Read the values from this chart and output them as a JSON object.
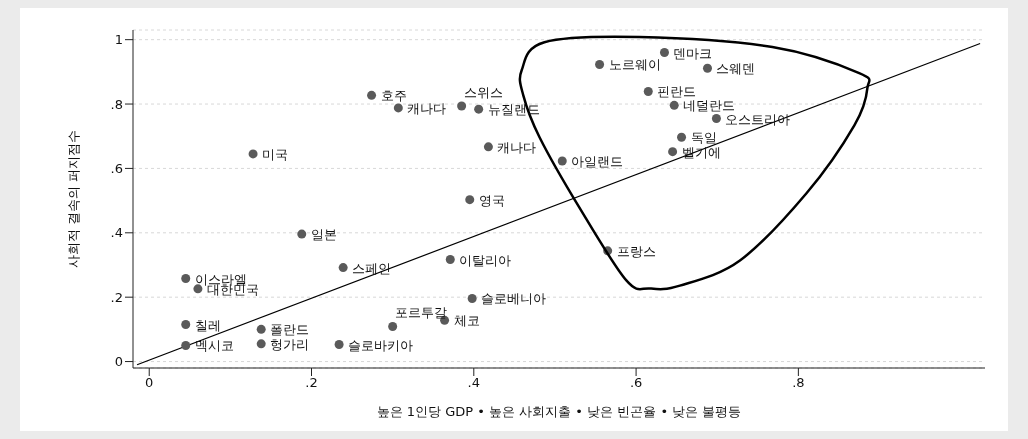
{
  "chart_data": {
    "type": "scatter",
    "xlabel": "높은 1인당 GDP • 높은 사회지출 • 낮은 빈곤율 • 낮은 불평등",
    "ylabel": "사회적 결속의 퍼지점수",
    "xlim": [
      -0.02,
      1.03
    ],
    "ylim": [
      -0.02,
      1.03
    ],
    "xticks": [
      0,
      {
        "value": 0.2,
        "label": ".2"
      },
      {
        "value": 0.4,
        "label": ".4"
      },
      {
        "value": 0.6,
        "label": ".6"
      },
      {
        "value": 0.8,
        "label": ".8"
      }
    ],
    "yticks": [
      0,
      {
        "value": 0.2,
        "label": ".2"
      },
      {
        "value": 0.4,
        "label": ".4"
      },
      {
        "value": 0.6,
        "label": ".6"
      },
      {
        "value": 0.8,
        "label": ".8"
      },
      1
    ],
    "grid": "y",
    "marker": "circle",
    "series": [
      {
        "color": "#5a5a5a",
        "x": [
          0.128,
          0.274,
          0.307,
          0.385,
          0.406,
          0.418,
          0.395,
          0.635,
          0.555,
          0.688,
          0.615,
          0.647,
          0.699,
          0.656,
          0.645,
          0.509,
          0.565,
          0.188,
          0.239,
          0.371,
          0.045,
          0.06,
          0.398,
          0.045,
          0.138,
          0.364,
          0.3,
          0.045,
          0.138,
          0.234
        ],
        "values": [
          0.645,
          0.827,
          0.788,
          0.794,
          0.784,
          0.667,
          0.503,
          0.96,
          0.923,
          0.911,
          0.839,
          0.796,
          0.755,
          0.697,
          0.652,
          0.623,
          0.344,
          0.396,
          0.292,
          0.317,
          0.258,
          0.226,
          0.196,
          0.115,
          0.1,
          0.128,
          0.109,
          0.05,
          0.055,
          0.053
        ]
      },
      {
        "type": "line",
        "color": "#000000",
        "x": [
          -0.015,
          1.024
        ],
        "values": [
          -0.01,
          0.988
        ],
        "line_style": "solid",
        "marker": "none"
      }
    ],
    "annotations": [
      {
        "text": "미국",
        "x": 0.128,
        "y": 0.645
      },
      {
        "text": "호주",
        "x": 0.274,
        "y": 0.827
      },
      {
        "text": "캐나다",
        "x": 0.307,
        "y": 0.788
      },
      {
        "text": "스위스",
        "x": 0.385,
        "y": 0.794
      },
      {
        "text": "뉴질랜드",
        "x": 0.406,
        "y": 0.784
      },
      {
        "text": "캐나다",
        "x": 0.418,
        "y": 0.667
      },
      {
        "text": "영국",
        "x": 0.395,
        "y": 0.503
      },
      {
        "text": "덴마크",
        "x": 0.635,
        "y": 0.96
      },
      {
        "text": "노르웨이",
        "x": 0.555,
        "y": 0.923
      },
      {
        "text": "스웨덴",
        "x": 0.688,
        "y": 0.911
      },
      {
        "text": "핀란드",
        "x": 0.615,
        "y": 0.839
      },
      {
        "text": "네덜란드",
        "x": 0.647,
        "y": 0.796
      },
      {
        "text": "오스트리아",
        "x": 0.699,
        "y": 0.755
      },
      {
        "text": "독일",
        "x": 0.656,
        "y": 0.697
      },
      {
        "text": "벨기에",
        "x": 0.645,
        "y": 0.652
      },
      {
        "text": "아일랜드",
        "x": 0.509,
        "y": 0.623
      },
      {
        "text": "프랑스",
        "x": 0.565,
        "y": 0.344
      },
      {
        "text": "일본",
        "x": 0.188,
        "y": 0.396
      },
      {
        "text": "스페인",
        "x": 0.239,
        "y": 0.292
      },
      {
        "text": "이탈리아",
        "x": 0.371,
        "y": 0.317
      },
      {
        "text": "이스라엘",
        "x": 0.045,
        "y": 0.258
      },
      {
        "text": "대한민국",
        "x": 0.06,
        "y": 0.226
      },
      {
        "text": "슬로베니아",
        "x": 0.398,
        "y": 0.196
      },
      {
        "text": "칠레",
        "x": 0.045,
        "y": 0.115
      },
      {
        "text": "폴란드",
        "x": 0.138,
        "y": 0.1
      },
      {
        "text": "체코",
        "x": 0.364,
        "y": 0.128
      },
      {
        "text": "포르투갈",
        "x": 0.3,
        "y": 0.109
      },
      {
        "text": "멕시코",
        "x": 0.045,
        "y": 0.05
      },
      {
        "text": "헝가리",
        "x": 0.138,
        "y": 0.055
      },
      {
        "text": "슬로바키아",
        "x": 0.234,
        "y": 0.053
      }
    ]
  }
}
